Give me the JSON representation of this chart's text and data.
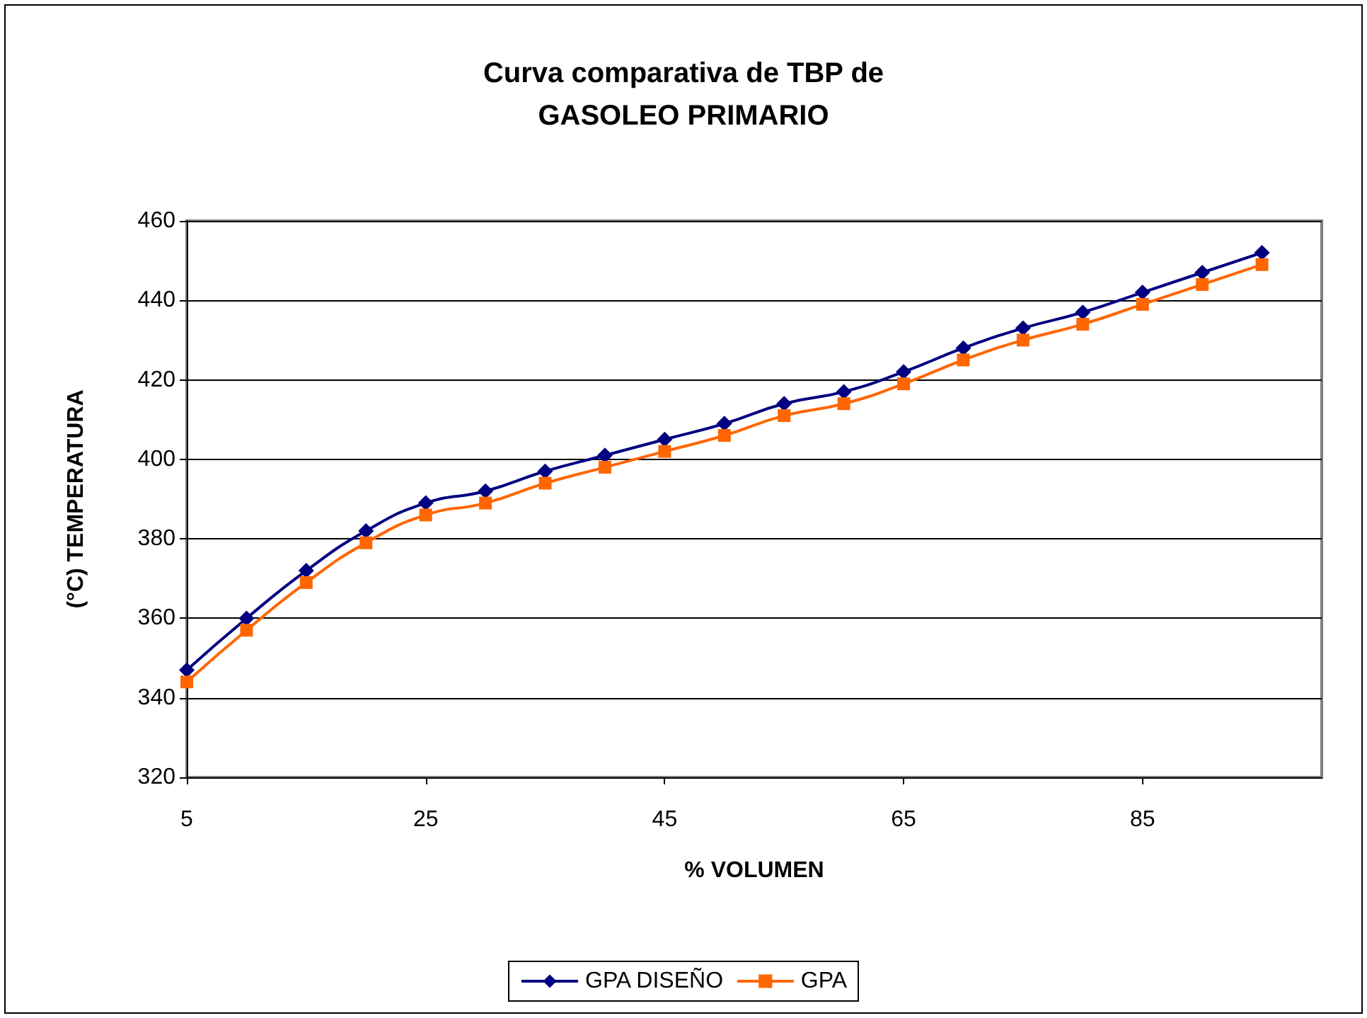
{
  "chart_data": {
    "type": "line",
    "title": "Curva comparativa de TBP de\nGASOLEO PRIMARIO",
    "xlabel": "% VOLUMEN",
    "ylabel": "(°C) TEMPERATURA",
    "x": [
      5,
      10,
      15,
      20,
      25,
      30,
      35,
      40,
      45,
      50,
      55,
      60,
      65,
      70,
      75,
      80,
      85,
      90,
      95
    ],
    "series": [
      {
        "name": "GPA DISEÑO",
        "color": "#000080",
        "marker": "diamond",
        "values": [
          347,
          360,
          372,
          382,
          389,
          392,
          397,
          401,
          405,
          409,
          414,
          417,
          422,
          428,
          433,
          437,
          442,
          447,
          452
        ]
      },
      {
        "name": "GPA",
        "color": "#ff6600",
        "marker": "square",
        "values": [
          344,
          357,
          369,
          379,
          386,
          389,
          394,
          398,
          402,
          406,
          411,
          414,
          419,
          425,
          430,
          434,
          439,
          444,
          449
        ]
      }
    ],
    "xlim": [
      5,
      100
    ],
    "xticks": [
      5,
      25,
      45,
      65,
      85
    ],
    "ylim": [
      320,
      460
    ],
    "yticks": [
      320,
      340,
      360,
      380,
      400,
      420,
      440,
      460
    ],
    "grid": "y",
    "legend": "bottom"
  }
}
